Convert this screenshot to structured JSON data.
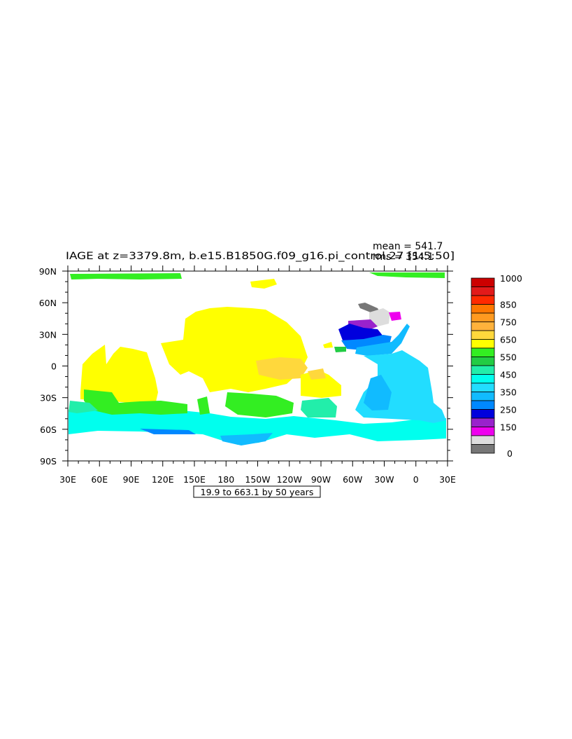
{
  "title": "IAGE at z=3379.8m, b.e15.B1850G.f09_g16.pi_control.27 [1:5:50]",
  "stats": {
    "mean": "mean = 541.7",
    "rms": "rms = 354.1"
  },
  "subtitle": "19.9 to 663.1 by 50 years",
  "map": {
    "projection": "cylindrical-equidistant",
    "lon_range": [
      30,
      390
    ],
    "lat_range": [
      -90,
      90
    ],
    "lon_tick_labels": [
      "30E",
      "60E",
      "90E",
      "120E",
      "150E",
      "180",
      "150W",
      "120W",
      "90W",
      "60W",
      "30W",
      "0",
      "30E"
    ],
    "lat_tick_labels": [
      "90N",
      "60N",
      "30N",
      "0",
      "30S",
      "60S",
      "90S"
    ]
  },
  "colorbar": {
    "labels": [
      "1000",
      "850",
      "750",
      "650",
      "550",
      "450",
      "350",
      "250",
      "150",
      "0"
    ],
    "colors": [
      "#cc0000",
      "#e21a1a",
      "#ff2a00",
      "#ff7700",
      "#ff9a20",
      "#ffb23c",
      "#ffd83c",
      "#ffff00",
      "#33ee22",
      "#22cc44",
      "#22eeaa",
      "#00ffee",
      "#22ddff",
      "#11bbff",
      "#0088ff",
      "#0000dd",
      "#9922cc",
      "#ee00ee",
      "#dddddd",
      "#777777"
    ]
  }
}
